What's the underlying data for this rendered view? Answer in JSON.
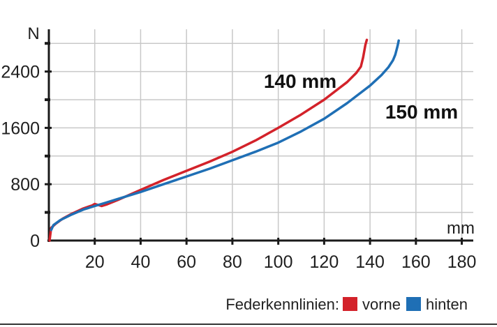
{
  "chart_data": {
    "type": "line",
    "xlabel": "mm",
    "ylabel": "N",
    "xlim": [
      0,
      185
    ],
    "ylim": [
      0,
      3000
    ],
    "x_ticks": [
      20,
      40,
      60,
      80,
      100,
      120,
      140,
      160,
      180
    ],
    "y_ticks": [
      0,
      800,
      1600,
      2400
    ],
    "x_tick_labels": [
      "20",
      "40",
      "60",
      "80",
      "100",
      "120",
      "140",
      "160",
      "180"
    ],
    "y_tick_labels": [
      "0",
      "800",
      "1600",
      "2400"
    ],
    "grid": true,
    "legend": {
      "title": "Federkennlinien:",
      "position": "bottom-right"
    },
    "series": [
      {
        "name": "vorne",
        "label": "140 mm",
        "color": "#d3222a",
        "x": [
          0.3,
          1,
          3,
          6,
          10,
          15,
          19,
          20,
          22,
          23,
          25,
          30,
          40,
          50,
          60,
          70,
          80,
          90,
          100,
          110,
          120,
          130,
          134,
          136,
          137,
          138,
          138.6
        ],
        "y": [
          0,
          180,
          240,
          310,
          380,
          455,
          500,
          520,
          500,
          490,
          510,
          575,
          720,
          860,
          990,
          1120,
          1260,
          1420,
          1600,
          1790,
          2000,
          2250,
          2380,
          2470,
          2600,
          2780,
          2850
        ]
      },
      {
        "name": "hinten",
        "label": "150 mm",
        "color": "#1f6fb5",
        "x": [
          1,
          2,
          5,
          10,
          15,
          20,
          25,
          30,
          40,
          50,
          60,
          70,
          80,
          90,
          100,
          110,
          120,
          130,
          140,
          145,
          148,
          150,
          151,
          152,
          152.5
        ],
        "y": [
          150,
          220,
          290,
          370,
          440,
          490,
          540,
          590,
          690,
          800,
          910,
          1020,
          1140,
          1260,
          1390,
          1550,
          1730,
          1950,
          2200,
          2350,
          2460,
          2560,
          2640,
          2760,
          2840
        ]
      }
    ]
  }
}
